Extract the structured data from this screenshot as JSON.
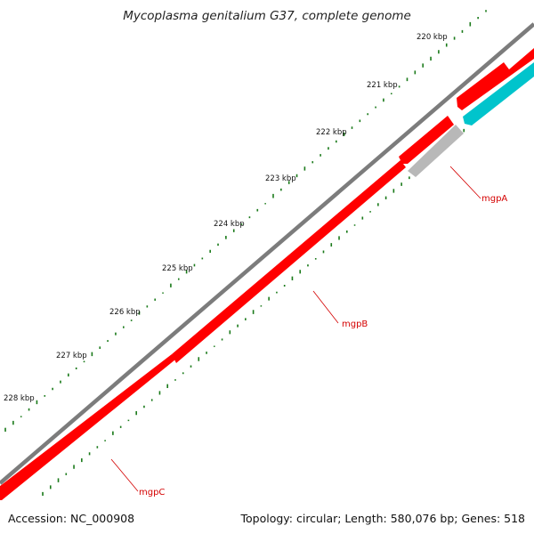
{
  "title": "Mycoplasma genitalium G37, complete genome",
  "footer": {
    "accession": "Accession: NC_000908",
    "summary": "Topology: circular; Length: 580,076 bp; Genes: 518"
  },
  "colors": {
    "backbone": "#7a7a7a",
    "forward_gene": "#ff0000",
    "reverse_gene": "#00c4cc",
    "pseudo_gene": "#b8b8b8",
    "gc_skew": "#1a7a1a",
    "label_line": "#d40000"
  },
  "scale_ticks": [
    {
      "label": "220 kbp"
    },
    {
      "label": "221 kbp"
    },
    {
      "label": "222 kbp"
    },
    {
      "label": "223 kbp"
    },
    {
      "label": "224 kbp"
    },
    {
      "label": "225 kbp"
    },
    {
      "label": "226 kbp"
    },
    {
      "label": "227 kbp"
    },
    {
      "label": "228 kbp"
    }
  ],
  "gene_labels": [
    {
      "name": "mgpA"
    },
    {
      "name": "mgpB"
    },
    {
      "name": "mgpC"
    }
  ]
}
